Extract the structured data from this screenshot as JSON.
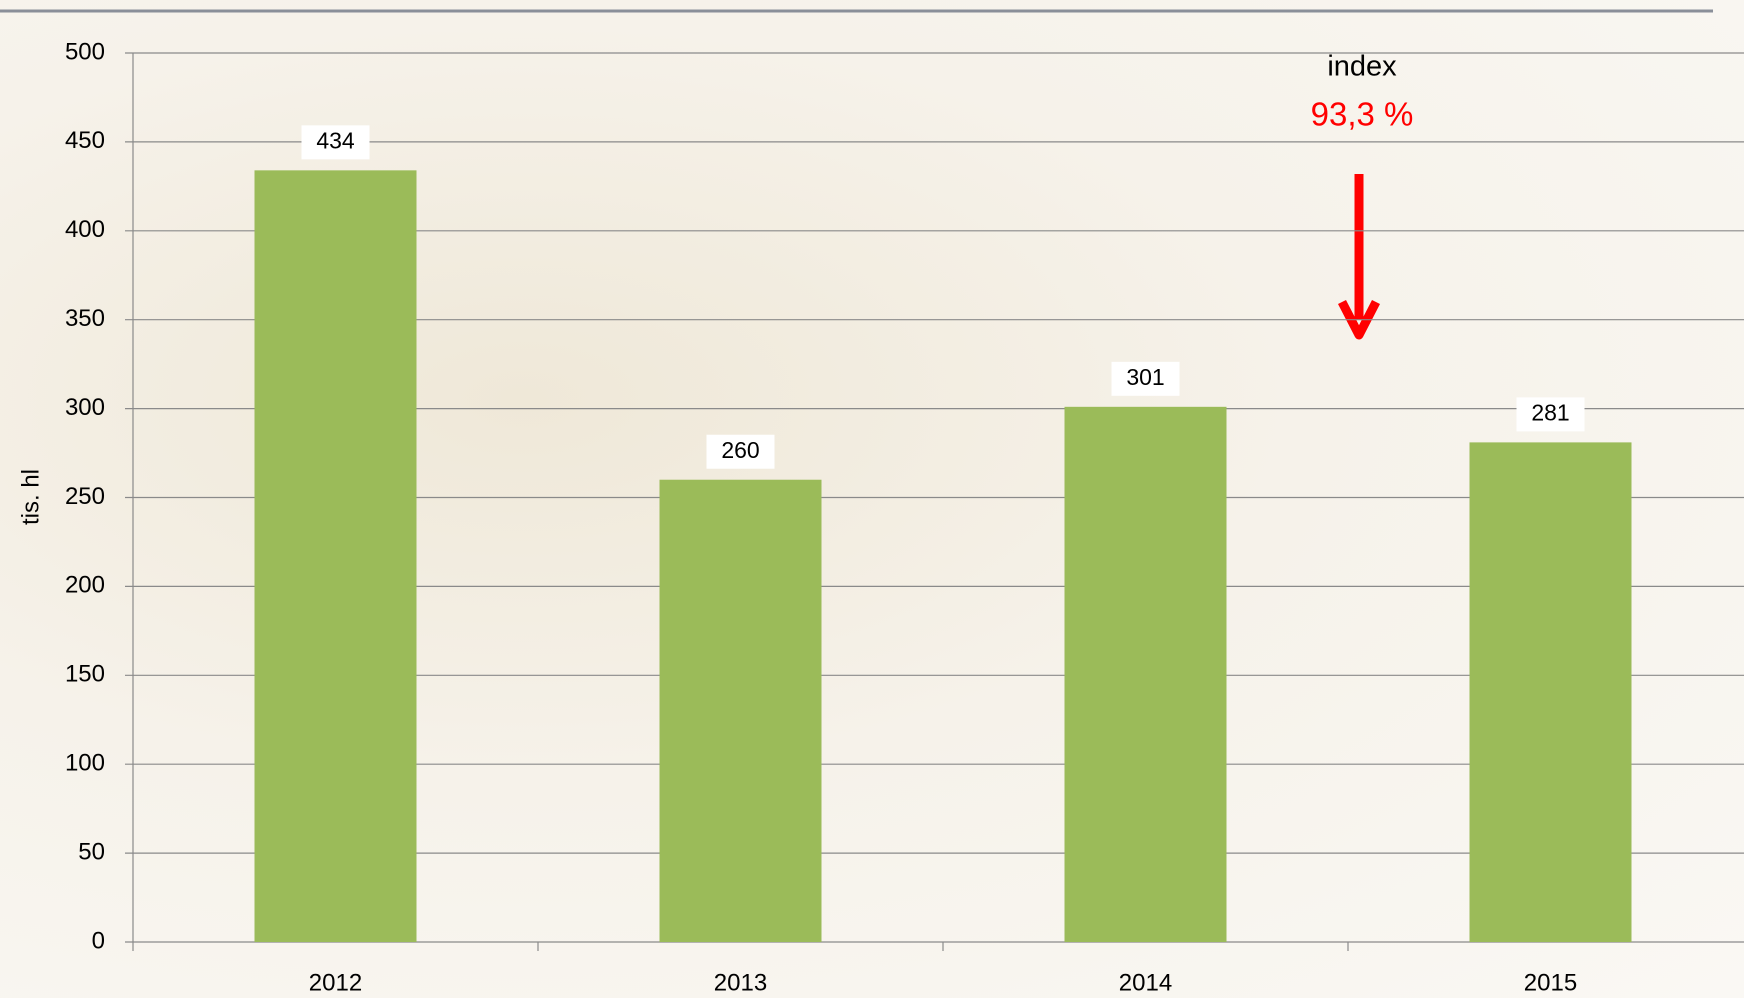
{
  "chart_data": {
    "type": "bar",
    "y_label": "tis. hl",
    "categories": [
      "2012",
      "2013",
      "2014",
      "2015"
    ],
    "values": [
      434,
      260,
      301,
      281
    ],
    "color": "#9bbb59",
    "ylim": [
      0,
      500
    ],
    "yticks": [
      0,
      50,
      100,
      150,
      200,
      250,
      300,
      350,
      400,
      450,
      500
    ],
    "grid": true,
    "annotations": [
      "index",
      "93,3 %"
    ]
  }
}
